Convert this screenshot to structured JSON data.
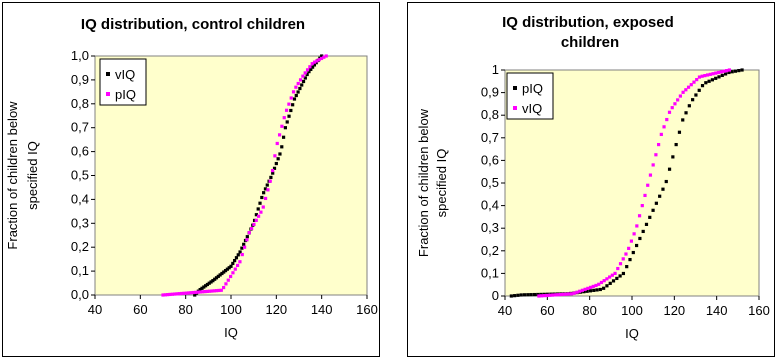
{
  "chart_data": [
    {
      "type": "scatter",
      "title": "IQ distribution, control children",
      "xlabel": "IQ",
      "ylabel": "Fraction of children below specified IQ",
      "xlim": [
        40,
        160
      ],
      "ylim": [
        0,
        1
      ],
      "xticks": [
        "40",
        "60",
        "80",
        "100",
        "120",
        "140",
        "160"
      ],
      "yticks": [
        "0,0",
        "0,1",
        "0,2",
        "0,3",
        "0,4",
        "0,5",
        "0,6",
        "0,7",
        "0,8",
        "0,9",
        "1,0"
      ],
      "grid": false,
      "plot_background": "#ffffcc",
      "legend": "top-left",
      "series": [
        {
          "name": "vIQ",
          "color": "#000000",
          "knots": [
            [
              84,
              0.0
            ],
            [
              86,
              0.02
            ],
            [
              92,
              0.06
            ],
            [
              100,
              0.12
            ],
            [
              104,
              0.18
            ],
            [
              110,
              0.3
            ],
            [
              114,
              0.42
            ],
            [
              118,
              0.5
            ],
            [
              122,
              0.6
            ],
            [
              124,
              0.7
            ],
            [
              128,
              0.82
            ],
            [
              134,
              0.93
            ],
            [
              140,
              1.0
            ]
          ]
        },
        {
          "name": "pIQ",
          "color": "#ff00ff",
          "knots": [
            [
              70,
              0.0
            ],
            [
              96,
              0.02
            ],
            [
              104,
              0.14
            ],
            [
              108,
              0.26
            ],
            [
              114,
              0.36
            ],
            [
              118,
              0.5
            ],
            [
              120,
              0.62
            ],
            [
              124,
              0.76
            ],
            [
              128,
              0.86
            ],
            [
              132,
              0.92
            ],
            [
              136,
              0.97
            ],
            [
              142,
              1.0
            ]
          ]
        }
      ]
    },
    {
      "type": "scatter",
      "title": "IQ distribution, exposed children",
      "xlabel": "IQ",
      "ylabel": "Fraction of children below specified IQ",
      "xlim": [
        40,
        160
      ],
      "ylim": [
        0,
        1
      ],
      "xticks": [
        "40",
        "60",
        "80",
        "100",
        "120",
        "140",
        "160"
      ],
      "yticks": [
        "0",
        "0,1",
        "0,2",
        "0,3",
        "0,4",
        "0,5",
        "0,6",
        "0,7",
        "0,8",
        "0,9",
        "1"
      ],
      "grid": false,
      "plot_background": "#ffffcc",
      "legend": "top-left",
      "series": [
        {
          "name": "pIQ",
          "color": "#000000",
          "knots": [
            [
              43,
              0.0
            ],
            [
              48,
              0.005
            ],
            [
              70,
              0.01
            ],
            [
              86,
              0.03
            ],
            [
              96,
              0.1
            ],
            [
              102,
              0.22
            ],
            [
              106,
              0.3
            ],
            [
              112,
              0.42
            ],
            [
              116,
              0.5
            ],
            [
              120,
              0.64
            ],
            [
              124,
              0.78
            ],
            [
              128,
              0.86
            ],
            [
              134,
              0.94
            ],
            [
              146,
              0.99
            ],
            [
              152,
              1.0
            ]
          ]
        },
        {
          "name": "vIQ",
          "color": "#ff00ff",
          "knots": [
            [
              56,
              0.0
            ],
            [
              72,
              0.01
            ],
            [
              84,
              0.05
            ],
            [
              92,
              0.1
            ],
            [
              98,
              0.2
            ],
            [
              102,
              0.3
            ],
            [
              106,
              0.44
            ],
            [
              110,
              0.58
            ],
            [
              114,
              0.72
            ],
            [
              118,
              0.82
            ],
            [
              124,
              0.9
            ],
            [
              132,
              0.97
            ],
            [
              146,
              1.0
            ]
          ]
        }
      ]
    }
  ]
}
